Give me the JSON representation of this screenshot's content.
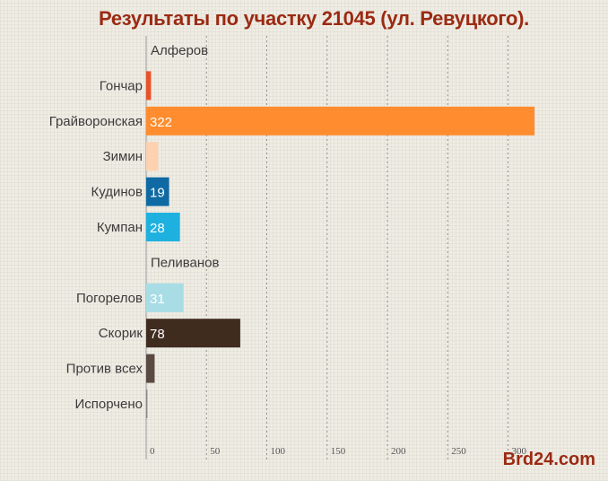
{
  "chart_data": {
    "type": "bar",
    "orientation": "horizontal",
    "title": "Результаты по участку 21045 (ул. Ревуцкого).",
    "categories": [
      "Алферов",
      "Гончар",
      "Грайворонская",
      "Зимин",
      "Кудинов",
      "Кумпан",
      "Пеливанов",
      "Погорелов",
      "Скорик",
      "Против всех",
      "Испорчено"
    ],
    "values": [
      0,
      4,
      322,
      10,
      19,
      28,
      0,
      31,
      78,
      7,
      1
    ],
    "value_labels": [
      "",
      "",
      "322",
      "",
      "19",
      "28",
      "",
      "31",
      "78",
      "",
      ""
    ],
    "colors": [
      "#cccccc",
      "#e8522a",
      "#ff8c2e",
      "#fcd2b0",
      "#0f6aa3",
      "#1eb1df",
      "#cccccc",
      "#a8dde6",
      "#402b1f",
      "#5a4a42",
      "#888888"
    ],
    "xlim": [
      0,
      320
    ],
    "xticks": [
      "0",
      "50",
      "100",
      "150",
      "200",
      "250",
      "300"
    ],
    "grid": true,
    "legend": "none"
  },
  "watermark": "Brd24.com"
}
